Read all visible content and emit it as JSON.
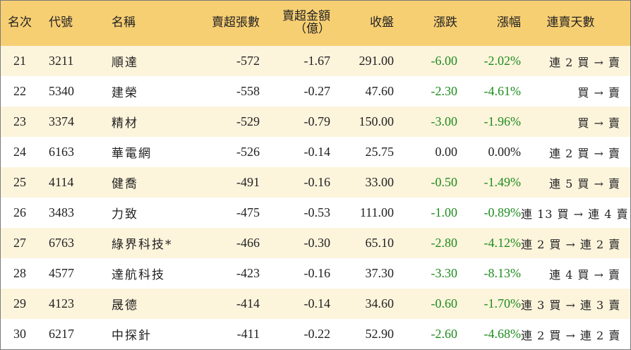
{
  "table": {
    "headers": {
      "rank": "名次",
      "code": "代號",
      "name": "名稱",
      "net_sell_lots": "賣超張數",
      "net_sell_amount_line1": "賣超金額",
      "net_sell_amount_line2": "（億）",
      "close": "收盤",
      "change": "漲跌",
      "change_pct": "漲幅",
      "sell_streak": "連賣天數"
    },
    "colors": {
      "header_bg": "#f7cf73",
      "row_odd_bg": "#fdf4dc",
      "row_even_bg": "#ffffff",
      "negative_green": "#1e8c1e",
      "text": "#222222"
    },
    "rows": [
      {
        "rank": "21",
        "code": "3211",
        "name": "順達",
        "lots": "-572",
        "amount": "-1.67",
        "close": "291.00",
        "change": "-6.00",
        "pct": "-2.02%",
        "streak": "連 2 買 → 賣",
        "color": "green"
      },
      {
        "rank": "22",
        "code": "5340",
        "name": "建榮",
        "lots": "-558",
        "amount": "-0.27",
        "close": "47.60",
        "change": "-2.30",
        "pct": "-4.61%",
        "streak": "買 → 賣",
        "color": "green"
      },
      {
        "rank": "23",
        "code": "3374",
        "name": "精材",
        "lots": "-529",
        "amount": "-0.79",
        "close": "150.00",
        "change": "-3.00",
        "pct": "-1.96%",
        "streak": "買 → 賣",
        "color": "green"
      },
      {
        "rank": "24",
        "code": "6163",
        "name": "華電網",
        "lots": "-526",
        "amount": "-0.14",
        "close": "25.75",
        "change": "0.00",
        "pct": "0.00%",
        "streak": "連 2 買 → 賣",
        "color": "black"
      },
      {
        "rank": "25",
        "code": "4114",
        "name": "健喬",
        "lots": "-491",
        "amount": "-0.16",
        "close": "33.00",
        "change": "-0.50",
        "pct": "-1.49%",
        "streak": "連 5 買 → 賣",
        "color": "green"
      },
      {
        "rank": "26",
        "code": "3483",
        "name": "力致",
        "lots": "-475",
        "amount": "-0.53",
        "close": "111.00",
        "change": "-1.00",
        "pct": "-0.89%",
        "streak": "連 13 買 → 連 4 賣",
        "color": "green"
      },
      {
        "rank": "27",
        "code": "6763",
        "name": "綠界科技*",
        "lots": "-466",
        "amount": "-0.30",
        "close": "65.10",
        "change": "-2.80",
        "pct": "-4.12%",
        "streak": "連 2 買 → 連 2 賣",
        "color": "green"
      },
      {
        "rank": "28",
        "code": "4577",
        "name": "達航科技",
        "lots": "-423",
        "amount": "-0.16",
        "close": "37.30",
        "change": "-3.30",
        "pct": "-8.13%",
        "streak": "連 4 買 → 賣",
        "color": "green"
      },
      {
        "rank": "29",
        "code": "4123",
        "name": "晟德",
        "lots": "-414",
        "amount": "-0.14",
        "close": "34.60",
        "change": "-0.60",
        "pct": "-1.70%",
        "streak": "連 3 買 → 連 3 賣",
        "color": "green"
      },
      {
        "rank": "30",
        "code": "6217",
        "name": "中探針",
        "lots": "-411",
        "amount": "-0.22",
        "close": "52.90",
        "change": "-2.60",
        "pct": "-4.68%",
        "streak": "連 2 買 → 連 2 賣",
        "color": "green"
      }
    ]
  }
}
